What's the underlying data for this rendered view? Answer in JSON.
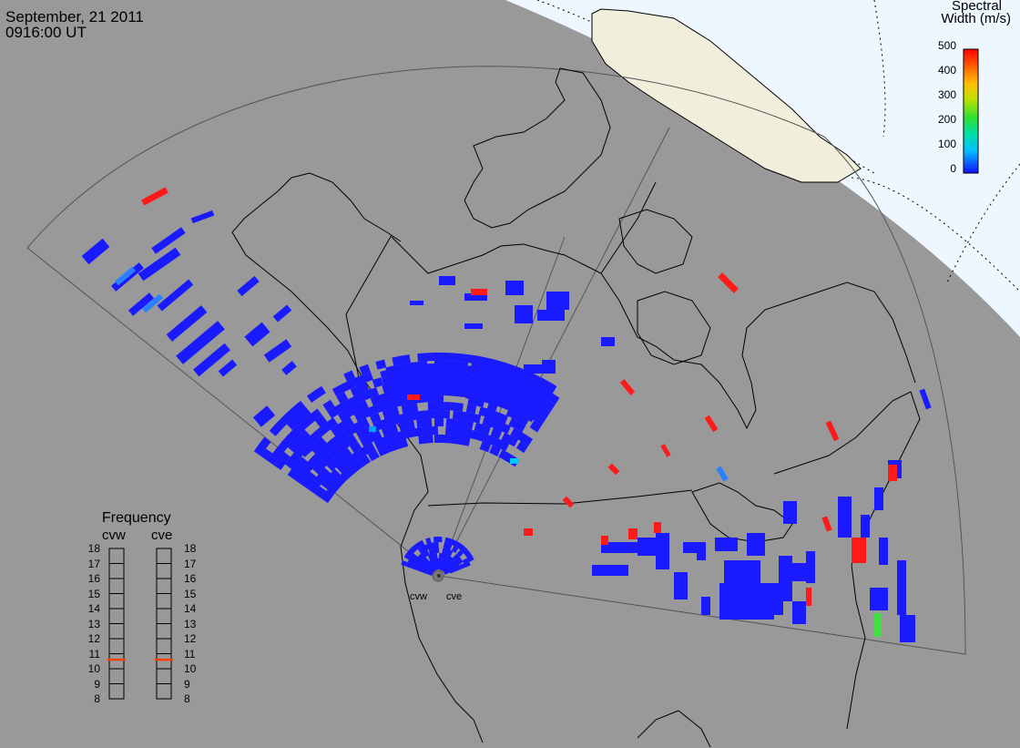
{
  "header": {
    "date": "September, 21 2011",
    "time": "0916:00 UT"
  },
  "stations": [
    {
      "id": "cvw",
      "label": "cvw"
    },
    {
      "id": "cve",
      "label": "cve"
    }
  ],
  "colorbar": {
    "title_line1": "Spectral",
    "title_line2": "Width (m/s)",
    "ticks": [
      "500",
      "400",
      "300",
      "200",
      "100",
      "0"
    ],
    "min": 0,
    "max": 500,
    "colors": [
      "#1010ff",
      "#00c0ff",
      "#00e0a0",
      "#30e030",
      "#c0e000",
      "#ffc000",
      "#ff6000",
      "#ff0000"
    ]
  },
  "frequency_panel": {
    "title": "Frequency",
    "left_label": "cvw",
    "right_label": "cve",
    "ticks": [
      "18",
      "17",
      "16",
      "15",
      "14",
      "13",
      "12",
      "11",
      "10",
      "9",
      "8"
    ],
    "range_mhz": [
      8,
      18
    ],
    "cvw_freq_mhz": 10.6,
    "cve_freq_mhz": 10.6,
    "marker_color": "#ff4000"
  },
  "map_colors": {
    "land": "#999999",
    "night_cap": "#eef7ff",
    "sunlit_land": "#f1efdc",
    "coast": "#000000",
    "fov": "#555555"
  }
}
